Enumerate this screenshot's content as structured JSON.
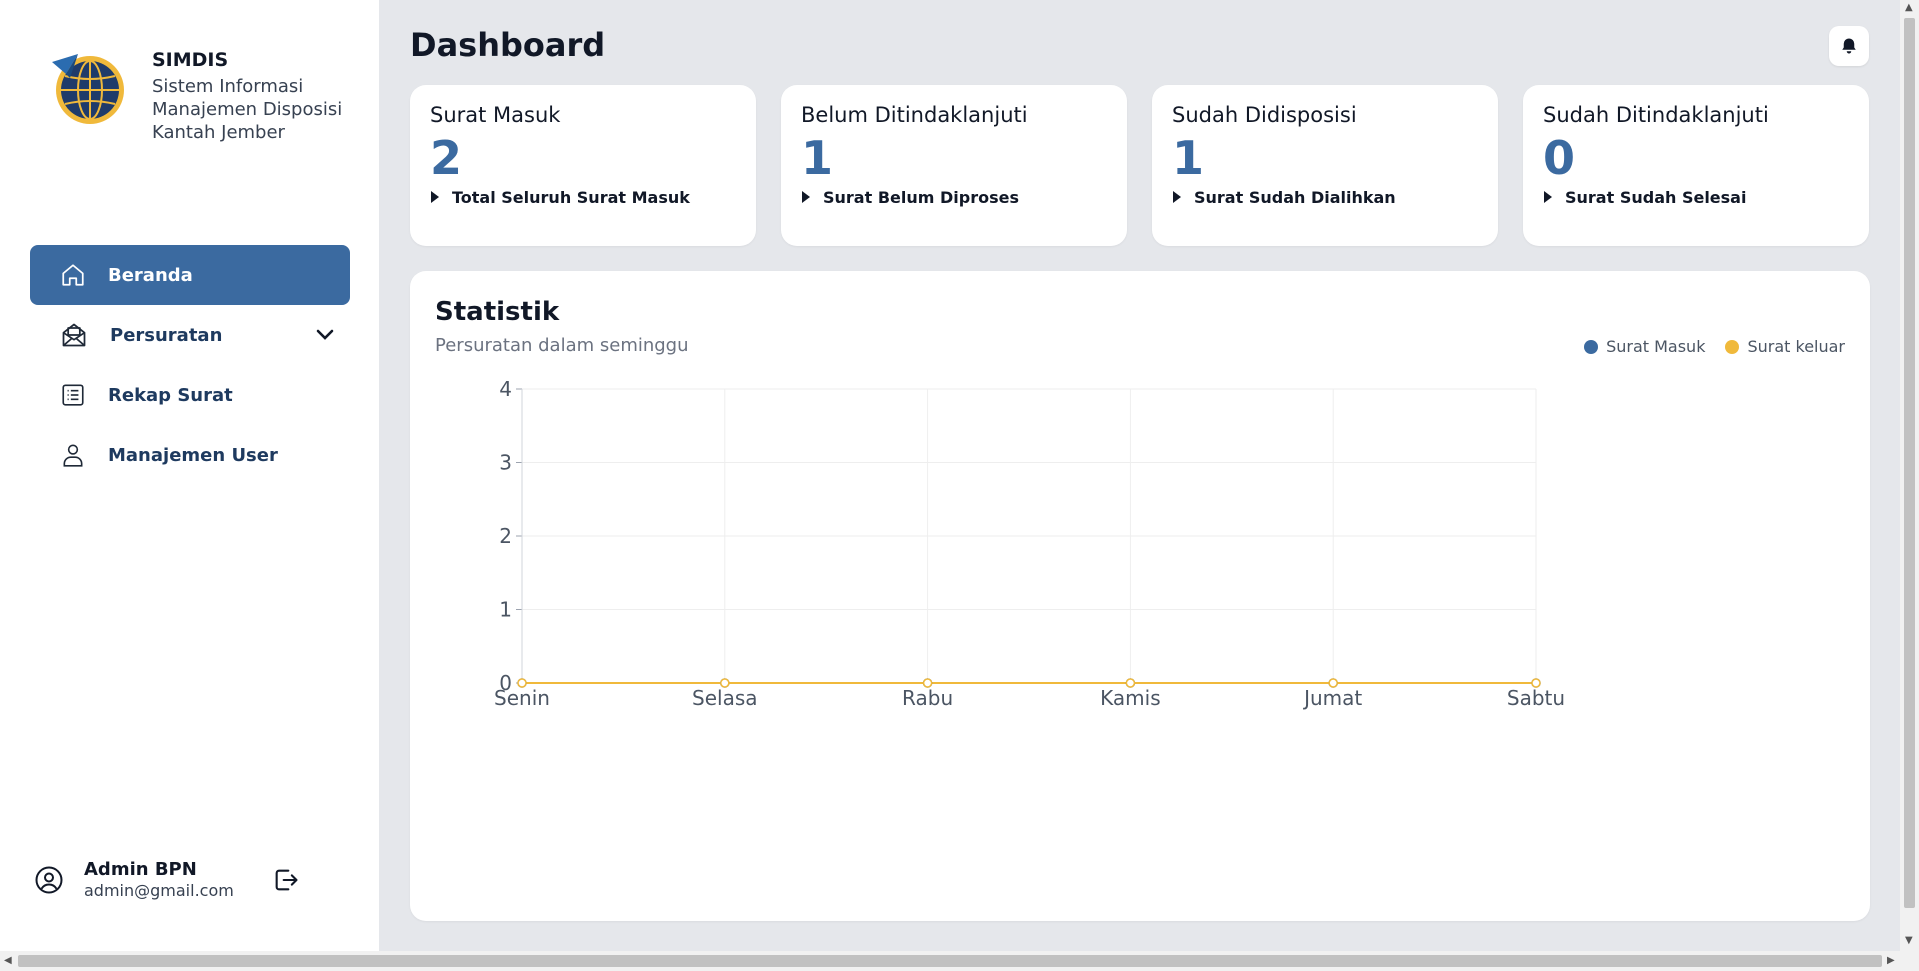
{
  "brand": {
    "title": "SIMDIS",
    "subtitle_lines": [
      "Sistem Informasi",
      "Manajemen Disposisi",
      "Kantah Jember"
    ]
  },
  "sidebar": {
    "items": [
      {
        "label": "Beranda",
        "icon": "home-icon",
        "active": true
      },
      {
        "label": "Persuratan",
        "icon": "mail-open-icon",
        "expandable": true
      },
      {
        "label": "Rekap Surat",
        "icon": "list-icon"
      },
      {
        "label": "Manajemen User",
        "icon": "user-icon"
      }
    ]
  },
  "user": {
    "name": "Admin BPN",
    "email": "admin@gmail.com"
  },
  "header": {
    "title": "Dashboard"
  },
  "cards": [
    {
      "title": "Surat Masuk",
      "value": "2",
      "caption": "Total Seluruh Surat Masuk"
    },
    {
      "title": "Belum Ditindaklanjuti",
      "value": "1",
      "caption": "Surat Belum Diproses"
    },
    {
      "title": "Sudah Didisposisi",
      "value": "1",
      "caption": "Surat Sudah Dialihkan"
    },
    {
      "title": "Sudah Ditindaklanjuti",
      "value": "0",
      "caption": "Surat Sudah Selesai"
    }
  ],
  "stats": {
    "title": "Statistik",
    "subtitle": "Persuratan dalam seminggu"
  },
  "colors": {
    "primary": "#3b6aa0",
    "surat_masuk": "#3b6aa0",
    "surat_keluar": "#f0b93b"
  },
  "chart_data": {
    "type": "line",
    "categories": [
      "Senin",
      "Selasa",
      "Rabu",
      "Kamis",
      "Jumat",
      "Sabtu"
    ],
    "series": [
      {
        "name": "Surat Masuk",
        "values": [
          0,
          0,
          0,
          0,
          0,
          0
        ],
        "color": "#3b6aa0"
      },
      {
        "name": "Surat keluar",
        "values": [
          0,
          0,
          0,
          0,
          0,
          0
        ],
        "color": "#f0b93b"
      }
    ],
    "ylim": [
      0,
      4
    ],
    "yticks": [
      0,
      1,
      2,
      3,
      4
    ],
    "grid": true,
    "legend": "top-right"
  }
}
